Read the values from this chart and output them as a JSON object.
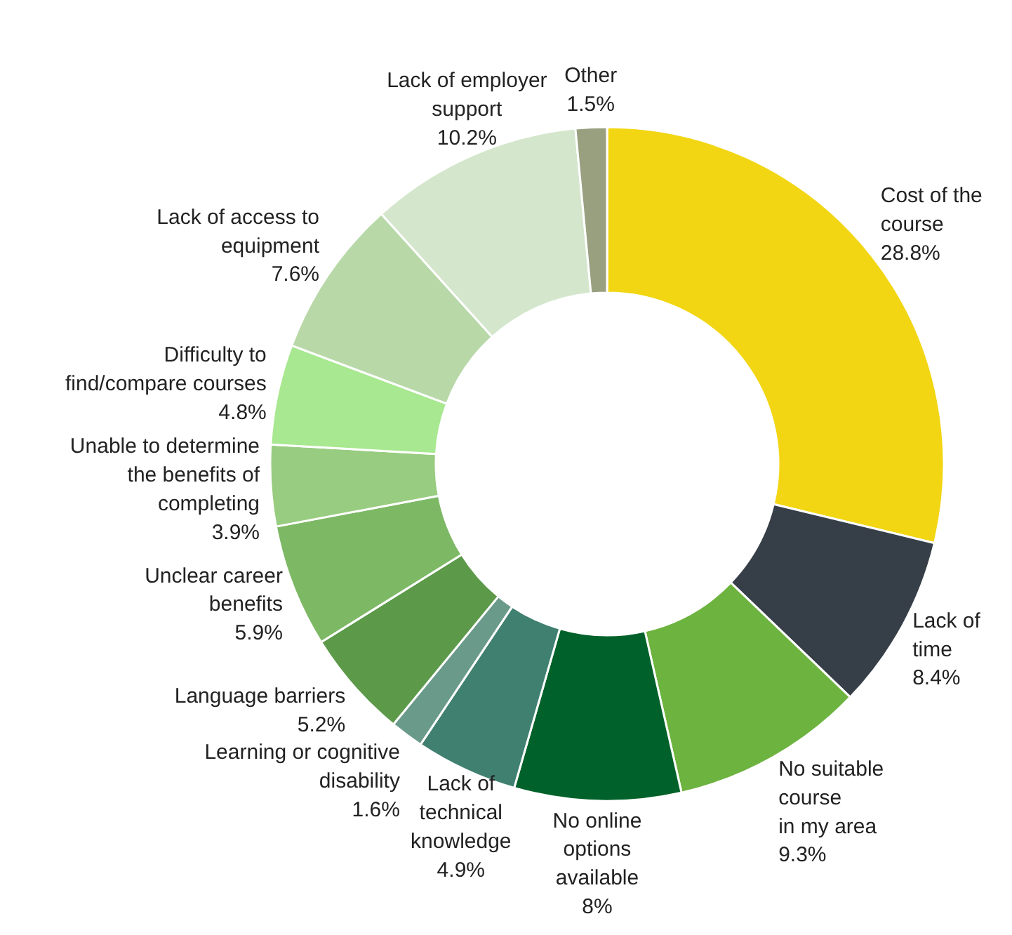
{
  "chart_data": {
    "type": "donut",
    "categories": [
      "Cost of the\ncourse",
      "Lack of\ntime",
      "No suitable\ncourse\nin my area",
      "No online\noptions\navailable",
      "Lack of\ntechnical\nknowledge",
      "Learning or cognitive\ndisability",
      "Language barriers",
      "Unclear career\nbenefits",
      "Unable to determine\nthe benefits of\ncompleting",
      "Difficulty to\nfind/compare courses",
      "Lack of access to\nequipment",
      "Lack of employer\nsupport",
      "Other"
    ],
    "values": [
      28.8,
      8.4,
      9.3,
      8,
      4.9,
      1.6,
      5.2,
      5.9,
      3.9,
      4.8,
      7.6,
      10.2,
      1.5
    ],
    "value_labels": [
      "28.8%",
      "8.4%",
      "9.3%",
      "8%",
      "4.9%",
      "1.6%",
      "5.2%",
      "5.9%",
      "3.9%",
      "4.8%",
      "7.6%",
      "10.2%",
      "1.5%"
    ],
    "colors": [
      "#f2d614",
      "#363f48",
      "#6db33f",
      "#00612a",
      "#408070",
      "#6a9a8a",
      "#5c9a4a",
      "#7db865",
      "#98cc80",
      "#a8e890",
      "#b8d8a8",
      "#d4e6cc",
      "#98a080"
    ]
  }
}
